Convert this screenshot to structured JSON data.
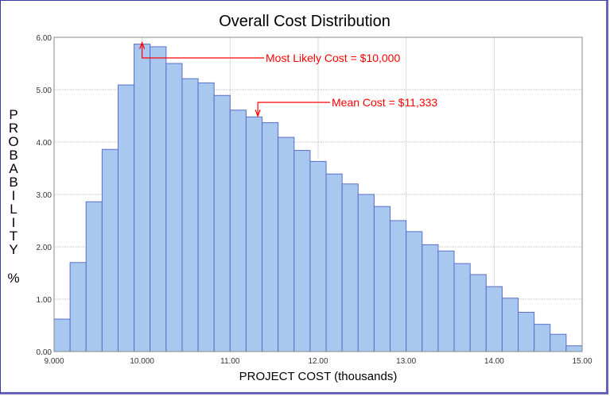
{
  "chart_data": {
    "type": "bar",
    "title": "Overall  Cost  Distribution",
    "xlabel": "PROJECT COST  (thousands)",
    "ylabel_letters": [
      "P",
      "R",
      "O",
      "B",
      "A",
      "B",
      "I",
      "L",
      "I",
      "T",
      "Y"
    ],
    "ylabel_unit": "%",
    "xlim": [
      9,
      15
    ],
    "ylim": [
      0,
      6
    ],
    "grid": true,
    "bin_count": 33,
    "x_ticks": [
      9,
      10,
      11,
      12,
      13,
      14,
      15
    ],
    "x_tick_labels": [
      "9.000",
      "10.000",
      "11.00",
      "12.00",
      "13.00",
      "14.00",
      "15.00"
    ],
    "y_ticks": [
      0,
      1,
      2,
      3,
      4,
      5,
      6
    ],
    "y_tick_labels": [
      "0.00",
      "1.00",
      "2.00",
      "3.00",
      "4.00",
      "5.00",
      "6.00"
    ],
    "values": [
      0.62,
      1.7,
      2.86,
      3.86,
      5.09,
      5.87,
      5.82,
      5.5,
      5.21,
      5.13,
      4.89,
      4.61,
      4.48,
      4.37,
      4.09,
      3.84,
      3.63,
      3.39,
      3.2,
      3.0,
      2.77,
      2.5,
      2.29,
      2.04,
      1.92,
      1.68,
      1.47,
      1.24,
      1.02,
      0.75,
      0.52,
      0.33,
      0.11
    ],
    "annotations": [
      {
        "label": "Most Likely Cost = $10,000",
        "x": 10.0,
        "y": 5.9,
        "direction": "up"
      },
      {
        "label": "Mean Cost = $11,333",
        "x": 11.333,
        "y": 4.48,
        "direction": "down"
      }
    ],
    "colors": {
      "bar_fill": "#a8c8f0",
      "bar_edge": "#5a6ec8",
      "annotation": "#ff0000",
      "grid": "#bbbbbb"
    }
  }
}
